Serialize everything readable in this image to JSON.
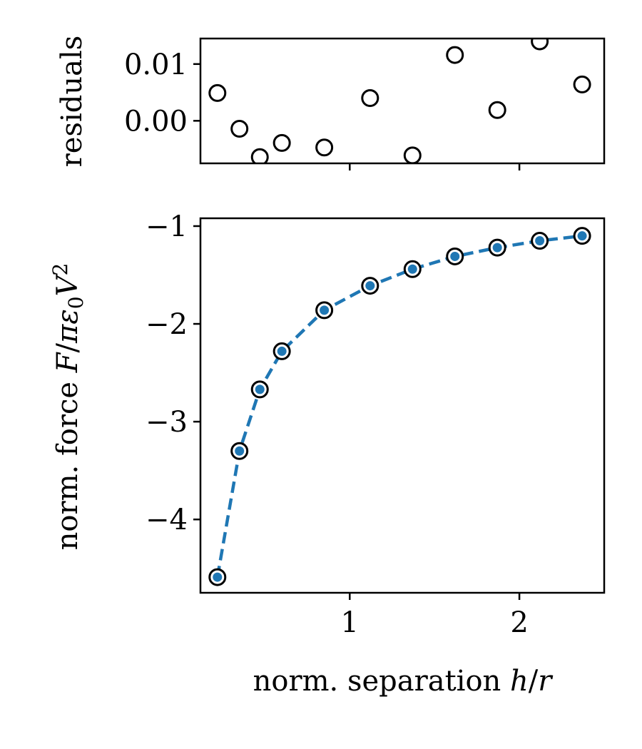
{
  "chart_data": [
    {
      "name": "residuals-panel",
      "type": "scatter",
      "ylabel": "residuals",
      "xlabel": "",
      "xlim": [
        0.12,
        2.5
      ],
      "ylim": [
        -0.0075,
        0.0145
      ],
      "yticks": [
        0.0,
        0.01
      ],
      "ytick_labels": [
        "0.00",
        "0.01"
      ],
      "xticks": [
        1,
        2
      ],
      "show_xtick_labels": false,
      "grid": false,
      "series": [
        {
          "marker": "open-circle",
          "color": "#000000",
          "x": [
            0.22,
            0.35,
            0.47,
            0.6,
            0.85,
            1.12,
            1.37,
            1.62,
            1.87,
            2.12,
            2.37
          ],
          "y": [
            0.0049,
            -0.0014,
            -0.0064,
            -0.0039,
            -0.0047,
            0.004,
            -0.0061,
            0.0116,
            0.0019,
            0.014,
            0.0064
          ]
        }
      ]
    },
    {
      "name": "force-panel",
      "type": "line",
      "ylabel": "norm. force F/πε₀V²",
      "xlabel": "norm. separation h/r",
      "xlim": [
        0.12,
        2.5
      ],
      "ylim": [
        -4.75,
        -0.92
      ],
      "yticks": [
        -4,
        -3,
        -2,
        -1
      ],
      "ytick_labels": [
        "−4",
        "−3",
        "−2",
        "−1"
      ],
      "xticks": [
        1,
        2
      ],
      "xtick_labels": [
        "1",
        "2"
      ],
      "grid": false,
      "series": [
        {
          "marker": "open-circle",
          "color": "#000000",
          "x": [
            0.22,
            0.35,
            0.47,
            0.6,
            0.85,
            1.12,
            1.37,
            1.62,
            1.87,
            2.12,
            2.37
          ],
          "y": [
            -4.59,
            -3.3,
            -2.67,
            -2.28,
            -1.86,
            -1.61,
            -1.44,
            -1.31,
            -1.22,
            -1.15,
            -1.1
          ]
        },
        {
          "marker": "dot",
          "line": "dashed",
          "color": "#1f77b4",
          "x": [
            0.22,
            0.35,
            0.47,
            0.6,
            0.85,
            1.12,
            1.37,
            1.62,
            1.87,
            2.12,
            2.37
          ],
          "y": [
            -4.59,
            -3.3,
            -2.67,
            -2.28,
            -1.86,
            -1.61,
            -1.44,
            -1.31,
            -1.22,
            -1.15,
            -1.1
          ]
        }
      ]
    }
  ]
}
